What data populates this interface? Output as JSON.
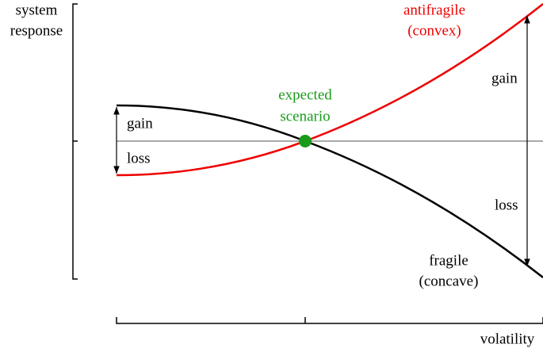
{
  "y_axis_label": [
    "system",
    "response"
  ],
  "x_axis_label": "volatility",
  "convex_label": [
    "antifragile",
    "(convex)"
  ],
  "concave_label": [
    "fragile",
    "(concave)"
  ],
  "center_label": [
    "expected",
    "scenario"
  ],
  "left_gain": "gain",
  "left_loss": "loss",
  "right_gain": "gain",
  "right_loss": "loss"
}
